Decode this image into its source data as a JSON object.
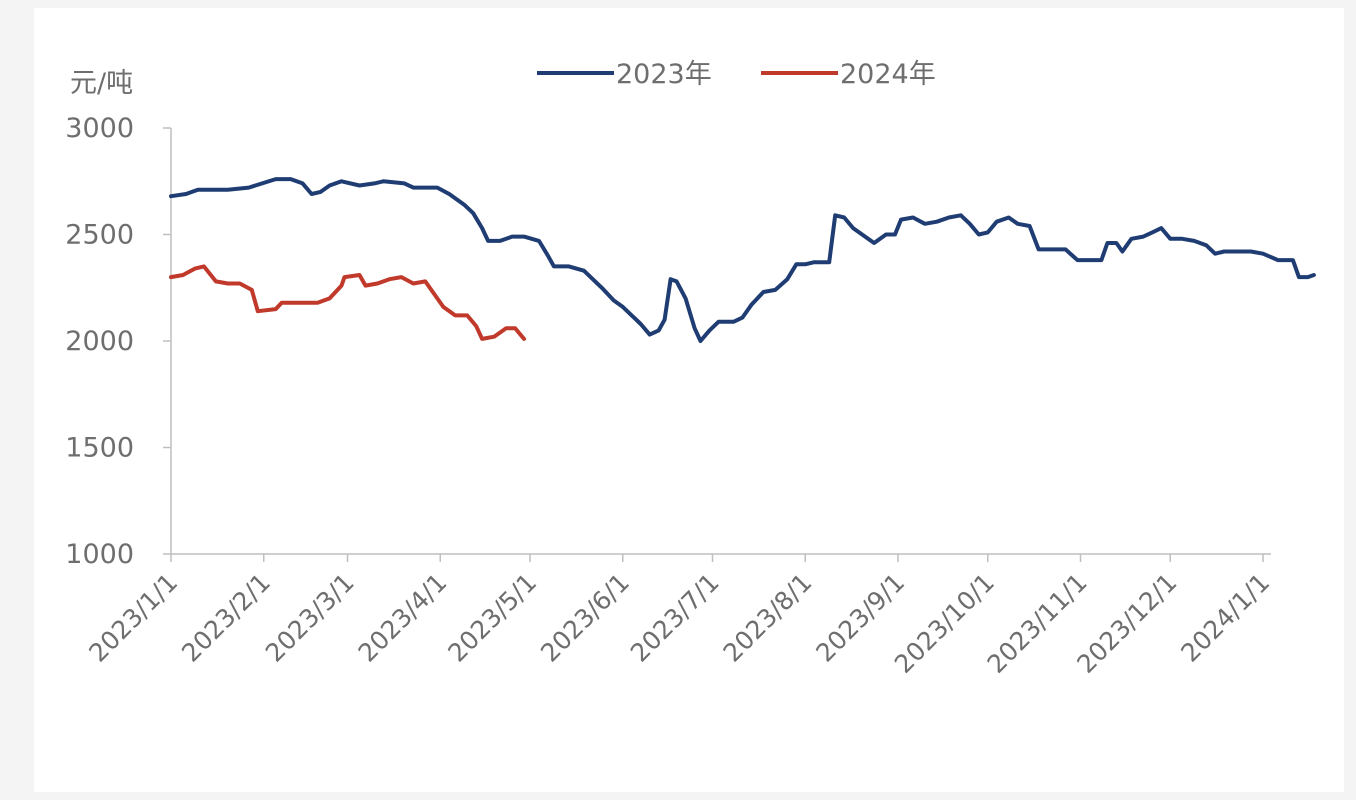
{
  "chart_data": {
    "type": "line",
    "y_unit_label": "元/吨",
    "ylim": [
      1000,
      3000
    ],
    "yticks": [
      1000,
      1500,
      2000,
      2500,
      3000
    ],
    "x_range": [
      "2023/1/1",
      "2024/1/1"
    ],
    "xtick_labels": [
      "2023/1/1",
      "2023/2/1",
      "2023/3/1",
      "2023/4/1",
      "2023/5/1",
      "2023/6/1",
      "2023/7/1",
      "2023/8/1",
      "2023/9/1",
      "2023/10/1",
      "2023/11/1",
      "2023/12/1",
      "2024/1/1"
    ],
    "legend_position": "top",
    "grid": false,
    "series": [
      {
        "name": "2023年",
        "color": "#1f3d73",
        "points": [
          [
            "2023/1/1",
            2680
          ],
          [
            "2023/1/6",
            2690
          ],
          [
            "2023/1/10",
            2710
          ],
          [
            "2023/1/20",
            2710
          ],
          [
            "2023/1/27",
            2720
          ],
          [
            "2023/2/5",
            2760
          ],
          [
            "2023/2/10",
            2760
          ],
          [
            "2023/2/14",
            2740
          ],
          [
            "2023/2/17",
            2690
          ],
          [
            "2023/2/20",
            2700
          ],
          [
            "2023/2/23",
            2730
          ],
          [
            "2023/2/27",
            2750
          ],
          [
            "2023/3/5",
            2730
          ],
          [
            "2023/3/10",
            2740
          ],
          [
            "2023/3/13",
            2750
          ],
          [
            "2023/3/20",
            2740
          ],
          [
            "2023/3/23",
            2720
          ],
          [
            "2023/3/31",
            2720
          ],
          [
            "2023/4/4",
            2690
          ],
          [
            "2023/4/9",
            2640
          ],
          [
            "2023/4/12",
            2600
          ],
          [
            "2023/4/15",
            2530
          ],
          [
            "2023/4/17",
            2470
          ],
          [
            "2023/4/21",
            2470
          ],
          [
            "2023/4/25",
            2490
          ],
          [
            "2023/4/29",
            2490
          ],
          [
            "2023/5/4",
            2470
          ],
          [
            "2023/5/7",
            2400
          ],
          [
            "2023/5/9",
            2350
          ],
          [
            "2023/5/14",
            2350
          ],
          [
            "2023/5/19",
            2330
          ],
          [
            "2023/5/22",
            2290
          ],
          [
            "2023/5/25",
            2250
          ],
          [
            "2023/5/29",
            2190
          ],
          [
            "2023/6/1",
            2160
          ],
          [
            "2023/6/4",
            2120
          ],
          [
            "2023/6/7",
            2080
          ],
          [
            "2023/6/10",
            2030
          ],
          [
            "2023/6/13",
            2050
          ],
          [
            "2023/6/15",
            2100
          ],
          [
            "2023/6/17",
            2290
          ],
          [
            "2023/6/19",
            2280
          ],
          [
            "2023/6/22",
            2200
          ],
          [
            "2023/6/25",
            2060
          ],
          [
            "2023/6/27",
            2000
          ],
          [
            "2023/6/30",
            2050
          ],
          [
            "2023/7/3",
            2090
          ],
          [
            "2023/7/8",
            2090
          ],
          [
            "2023/7/11",
            2110
          ],
          [
            "2023/7/14",
            2170
          ],
          [
            "2023/7/18",
            2230
          ],
          [
            "2023/7/22",
            2240
          ],
          [
            "2023/7/26",
            2290
          ],
          [
            "2023/7/29",
            2360
          ],
          [
            "2023/8/1",
            2360
          ],
          [
            "2023/8/4",
            2370
          ],
          [
            "2023/8/9",
            2370
          ],
          [
            "2023/8/11",
            2590
          ],
          [
            "2023/8/14",
            2580
          ],
          [
            "2023/8/17",
            2530
          ],
          [
            "2023/8/21",
            2490
          ],
          [
            "2023/8/24",
            2460
          ],
          [
            "2023/8/28",
            2500
          ],
          [
            "2023/8/31",
            2500
          ],
          [
            "2023/9/2",
            2570
          ],
          [
            "2023/9/6",
            2580
          ],
          [
            "2023/9/10",
            2550
          ],
          [
            "2023/9/14",
            2560
          ],
          [
            "2023/9/18",
            2580
          ],
          [
            "2023/9/22",
            2590
          ],
          [
            "2023/9/25",
            2550
          ],
          [
            "2023/9/28",
            2500
          ],
          [
            "2023/10/1",
            2510
          ],
          [
            "2023/10/4",
            2560
          ],
          [
            "2023/10/8",
            2580
          ],
          [
            "2023/10/11",
            2550
          ],
          [
            "2023/10/15",
            2540
          ],
          [
            "2023/10/18",
            2430
          ],
          [
            "2023/10/22",
            2430
          ],
          [
            "2023/10/27",
            2430
          ],
          [
            "2023/10/31",
            2380
          ],
          [
            "2023/11/3",
            2380
          ],
          [
            "2023/11/8",
            2380
          ],
          [
            "2023/11/10",
            2460
          ],
          [
            "2023/11/13",
            2460
          ],
          [
            "2023/11/15",
            2420
          ],
          [
            "2023/11/18",
            2480
          ],
          [
            "2023/11/22",
            2490
          ],
          [
            "2023/11/25",
            2510
          ],
          [
            "2023/11/28",
            2530
          ],
          [
            "2023/12/1",
            2480
          ],
          [
            "2023/12/5",
            2480
          ],
          [
            "2023/12/9",
            2470
          ],
          [
            "2023/12/13",
            2450
          ],
          [
            "2023/12/16",
            2410
          ],
          [
            "2023/12/19",
            2420
          ],
          [
            "2023/12/25",
            2420
          ],
          [
            "2023/12/28",
            2420
          ],
          [
            "2024/1/1",
            2410
          ],
          [
            "2024/1/6",
            2380
          ],
          [
            "2024/1/11",
            2380
          ],
          [
            "2024/1/13",
            2300
          ],
          [
            "2024/1/16",
            2300
          ],
          [
            "2024/1/18",
            2310
          ]
        ]
      },
      {
        "name": "2024年",
        "color": "#c0392b",
        "points": [
          [
            "2023/1/1",
            2300
          ],
          [
            "2023/1/5",
            2310
          ],
          [
            "2023/1/9",
            2340
          ],
          [
            "2023/1/12",
            2350
          ],
          [
            "2023/1/16",
            2280
          ],
          [
            "2023/1/20",
            2270
          ],
          [
            "2023/1/24",
            2270
          ],
          [
            "2023/1/28",
            2240
          ],
          [
            "2023/1/30",
            2140
          ],
          [
            "2023/2/5",
            2150
          ],
          [
            "2023/2/7",
            2180
          ],
          [
            "2023/2/13",
            2180
          ],
          [
            "2023/2/19",
            2180
          ],
          [
            "2023/2/23",
            2200
          ],
          [
            "2023/2/27",
            2260
          ],
          [
            "2023/2/28",
            2300
          ],
          [
            "2023/3/5",
            2310
          ],
          [
            "2023/3/7",
            2260
          ],
          [
            "2023/3/11",
            2270
          ],
          [
            "2023/3/15",
            2290
          ],
          [
            "2023/3/19",
            2300
          ],
          [
            "2023/3/23",
            2270
          ],
          [
            "2023/3/27",
            2280
          ],
          [
            "2023/3/31",
            2200
          ],
          [
            "2023/4/2",
            2160
          ],
          [
            "2023/4/6",
            2120
          ],
          [
            "2023/4/10",
            2120
          ],
          [
            "2023/4/13",
            2070
          ],
          [
            "2023/4/15",
            2010
          ],
          [
            "2023/4/19",
            2020
          ],
          [
            "2023/4/23",
            2060
          ],
          [
            "2023/4/26",
            2060
          ],
          [
            "2023/4/29",
            2010
          ]
        ]
      }
    ]
  }
}
